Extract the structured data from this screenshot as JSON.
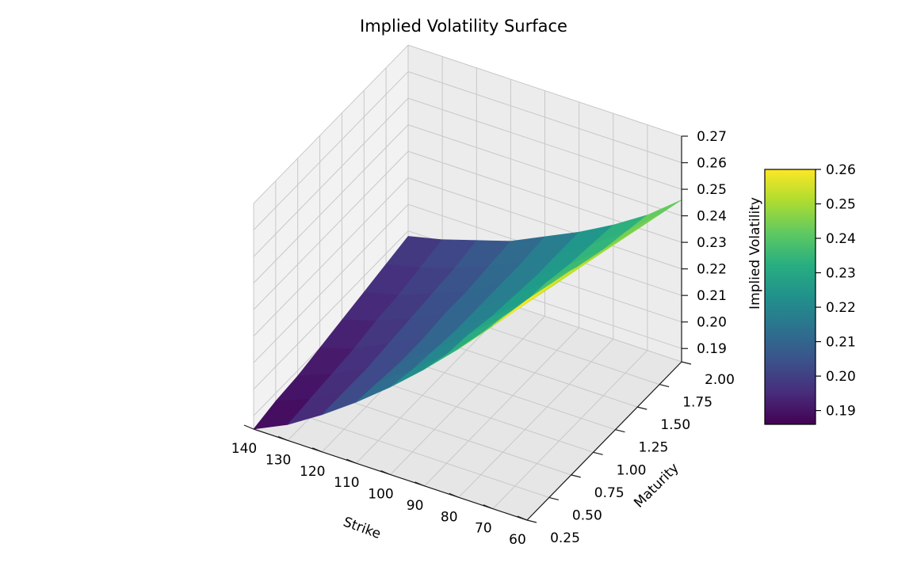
{
  "chart_data": {
    "type": "surface3d",
    "title": "Implied Volatility Surface",
    "xlabel": "Strike",
    "ylabel": "Maturity",
    "zlabel": "Implied Volatility",
    "colormap": "viridis",
    "x_ticks": [
      "60",
      "70",
      "80",
      "90",
      "100",
      "110",
      "120",
      "130",
      "140"
    ],
    "y_ticks": [
      "0.25",
      "0.50",
      "0.75",
      "1.00",
      "1.25",
      "1.50",
      "1.75",
      "2.00"
    ],
    "z_ticks": [
      "0.19",
      "0.20",
      "0.21",
      "0.22",
      "0.23",
      "0.24",
      "0.25",
      "0.26",
      "0.27"
    ],
    "xlim": [
      60,
      140
    ],
    "ylim": [
      0.25,
      2.0
    ],
    "zlim": [
      0.185,
      0.27
    ],
    "colorbar": {
      "range": [
        0.186,
        0.26
      ],
      "ticks": [
        "0.19",
        "0.20",
        "0.21",
        "0.22",
        "0.23",
        "0.24",
        "0.25",
        "0.26"
      ]
    },
    "strikes": [
      60,
      70,
      80,
      90,
      100,
      110,
      120,
      130,
      140
    ],
    "maturities": [
      0.25,
      0.5,
      0.75,
      1.0,
      1.25,
      1.5,
      1.75,
      2.0
    ],
    "iv": [
      [
        0.268,
        0.254,
        0.241,
        0.229,
        0.218,
        0.208,
        0.199,
        0.191,
        0.185
      ],
      [
        0.265,
        0.251,
        0.238,
        0.226,
        0.216,
        0.207,
        0.199,
        0.192,
        0.187
      ],
      [
        0.262,
        0.248,
        0.236,
        0.225,
        0.215,
        0.206,
        0.199,
        0.193,
        0.188
      ],
      [
        0.258,
        0.245,
        0.233,
        0.223,
        0.214,
        0.206,
        0.2,
        0.194,
        0.19
      ],
      [
        0.255,
        0.243,
        0.232,
        0.222,
        0.214,
        0.207,
        0.201,
        0.196,
        0.192
      ],
      [
        0.252,
        0.24,
        0.23,
        0.221,
        0.214,
        0.207,
        0.202,
        0.197,
        0.194
      ],
      [
        0.249,
        0.238,
        0.229,
        0.221,
        0.214,
        0.208,
        0.203,
        0.199,
        0.196
      ],
      [
        0.246,
        0.236,
        0.228,
        0.221,
        0.215,
        0.209,
        0.205,
        0.201,
        0.198
      ]
    ]
  }
}
